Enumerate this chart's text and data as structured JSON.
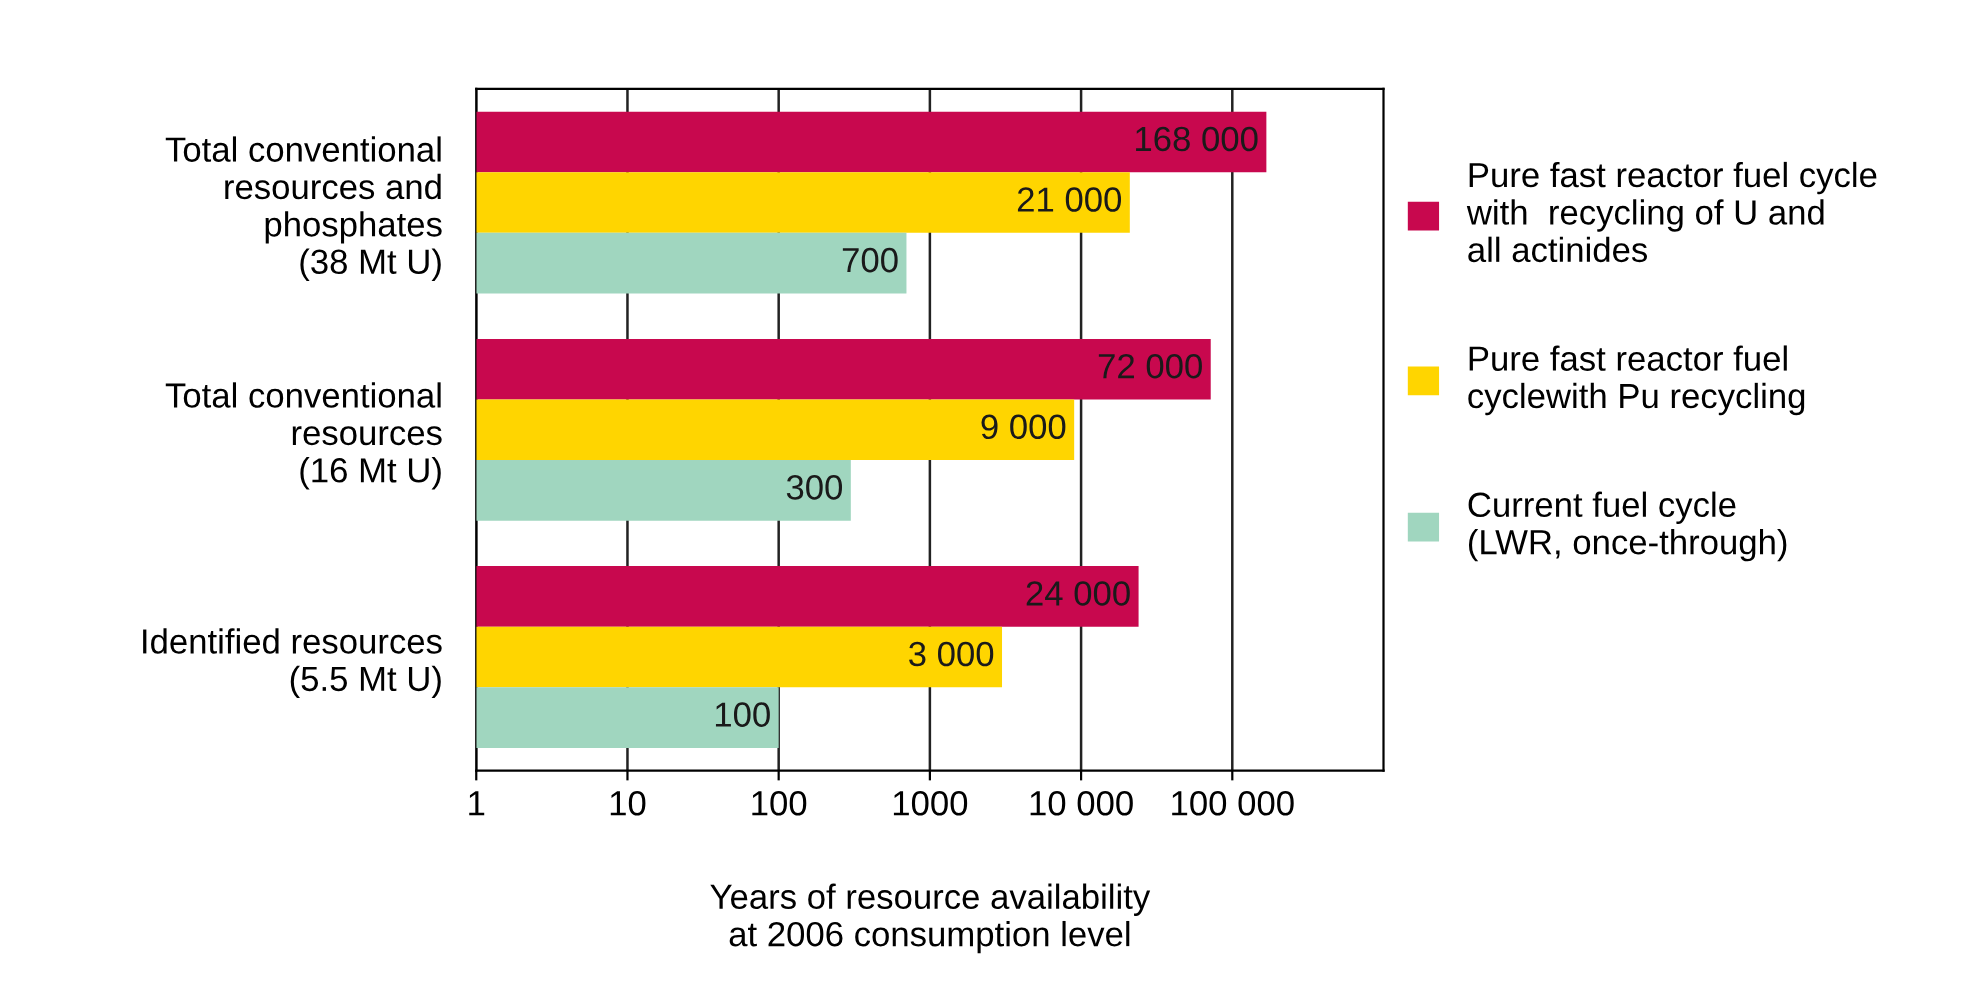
{
  "chart_data": {
    "type": "bar",
    "orientation": "horizontal",
    "log": "x",
    "categories": [
      "Total conventional\nresources and\nphosphates\n(38 Mt U)",
      "Total conventional\nresources\n(16 Mt U)",
      "Identified resources\n(5.5 Mt U)"
    ],
    "series": [
      {
        "name": "Pure fast reactor fuel cycle\nwith  recycling of U and\nall actinides",
        "color": "#c8084e",
        "values": [
          168000,
          72000,
          24000
        ],
        "value_labels": [
          "168 000",
          "72 000",
          "24 000"
        ]
      },
      {
        "name": "Pure fast reactor fuel\ncyclewith Pu recycling",
        "color": "#ffd500",
        "values": [
          21000,
          9000,
          3000
        ],
        "value_labels": [
          "21 000",
          "9 000",
          "3 000"
        ]
      },
      {
        "name": "Current fuel cycle\n(LWR, once-through)",
        "color": "#a0d6bf",
        "values": [
          700,
          300,
          100
        ],
        "value_labels": [
          "700",
          "300",
          "100"
        ]
      }
    ],
    "xlabel": "Years of resource availability\nat 2006 consumption level",
    "xlim": [
      1,
      1000000
    ],
    "xticks": [
      1,
      10,
      100,
      1000,
      {
        "value": 10000,
        "label": "10 000"
      },
      {
        "value": 100000,
        "label": "100 000"
      }
    ],
    "grid": "x",
    "legend": "right"
  }
}
